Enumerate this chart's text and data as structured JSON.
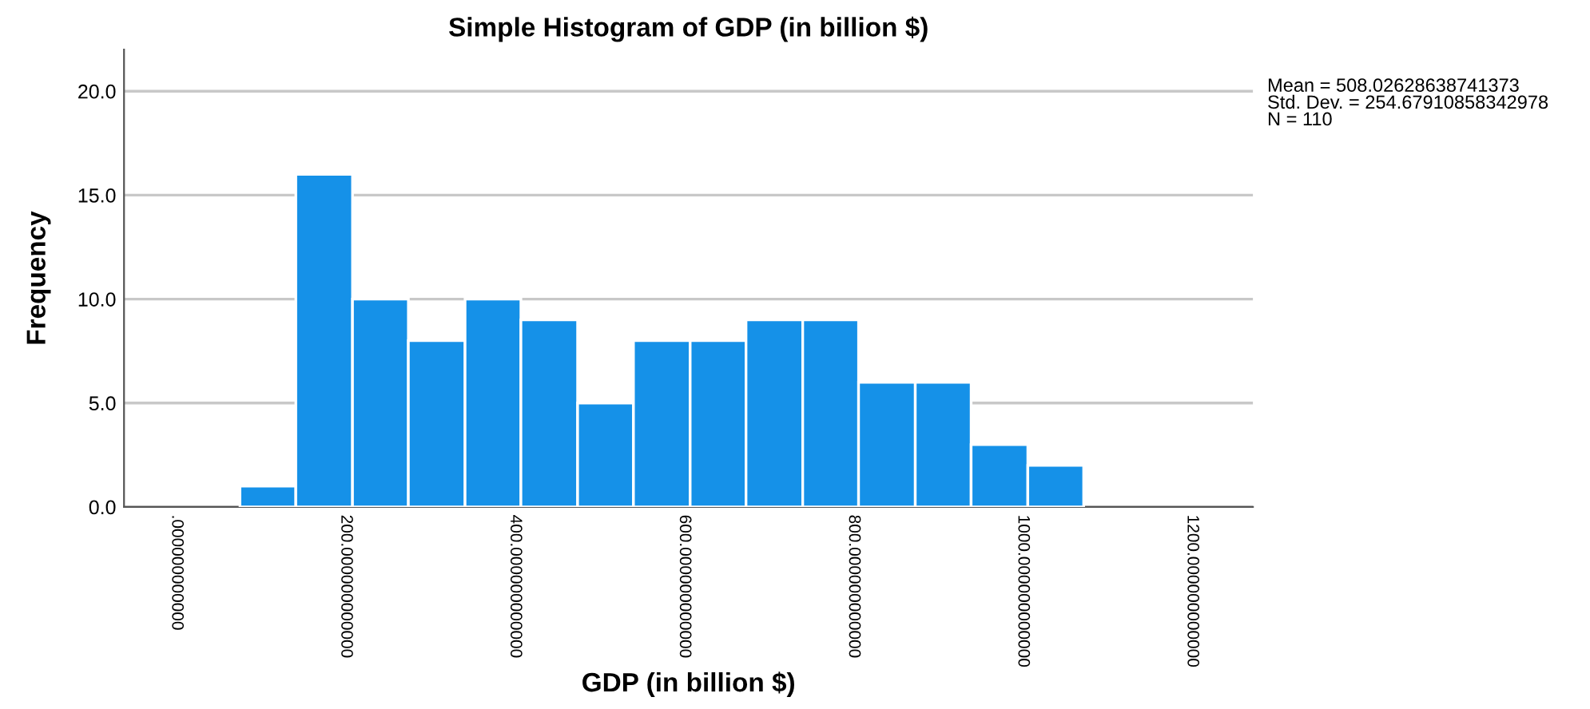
{
  "chart_data": {
    "type": "histogram",
    "title": "Simple Histogram of GDP (in billion $)",
    "xlabel": "GDP (in billion $)",
    "ylabel": "Frequency",
    "bins": [
      75,
      141,
      208,
      274,
      341,
      407,
      474,
      540,
      607,
      673,
      740,
      806,
      873,
      939,
      1006,
      1072
    ],
    "values": [
      1,
      16,
      10,
      8,
      10,
      9,
      5,
      8,
      8,
      9,
      9,
      6,
      6,
      3,
      2
    ],
    "color": "#1591e8",
    "xlim": [
      -62,
      1272
    ],
    "ylim": [
      0,
      22
    ],
    "xticks": [
      {
        "value": 0,
        "label": ".000000000000"
      },
      {
        "value": 200,
        "label": "200.000000000000"
      },
      {
        "value": 400,
        "label": "400.000000000000"
      },
      {
        "value": 600,
        "label": "600.000000000000"
      },
      {
        "value": 800,
        "label": "800.000000000000"
      },
      {
        "value": 1000,
        "label": "1000.000000000000"
      },
      {
        "value": 1200,
        "label": "1200.000000000000"
      }
    ],
    "yticks": [
      {
        "value": 0,
        "label": "0.0"
      },
      {
        "value": 5,
        "label": "5.0"
      },
      {
        "value": 10,
        "label": "10.0"
      },
      {
        "value": 15,
        "label": "15.0"
      },
      {
        "value": 20,
        "label": "20.0"
      }
    ],
    "grid": "y",
    "annotations": [
      "Mean = 508.02628638741373\nStd. Dev. = 254.67910858342978\nN = 110"
    ]
  }
}
